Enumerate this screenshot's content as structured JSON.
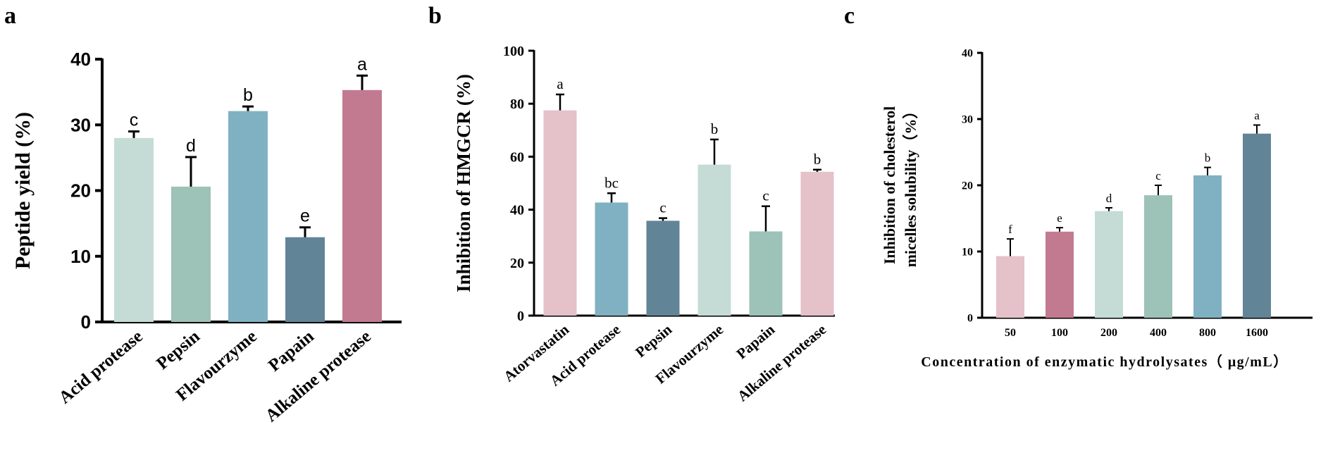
{
  "chart_data": [
    {
      "panel": "a",
      "type": "bar",
      "title": "",
      "xlabel": "",
      "ylabel": "Peptide yield (%)",
      "ylim": [
        0,
        40
      ],
      "yticks": [
        0,
        10,
        20,
        30,
        40
      ],
      "categories": [
        "Acid protease",
        "Pepsin",
        "Flavourzyme",
        "Papain",
        "Alkaline protease"
      ],
      "values": [
        28.0,
        20.6,
        32.1,
        12.9,
        35.3
      ],
      "errors": [
        1.0,
        4.5,
        0.7,
        1.5,
        2.2
      ],
      "significance": [
        "c",
        "d",
        "b",
        "e",
        "a"
      ],
      "colors": [
        "#c4dcd5",
        "#9dc2b8",
        "#80b1c2",
        "#628497",
        "#c27a91"
      ]
    },
    {
      "panel": "b",
      "type": "bar",
      "title": "",
      "xlabel": "",
      "ylabel": "Inhibition of HMGCR (%)",
      "ylim": [
        0,
        100
      ],
      "yticks": [
        0,
        20,
        40,
        60,
        80,
        100
      ],
      "categories": [
        "Atorvastatin",
        "Acid protease",
        "Pepsin",
        "Flavourzyme",
        "Papain",
        "Alkaline protease"
      ],
      "values": [
        77.5,
        42.7,
        35.8,
        57.0,
        31.8,
        54.3
      ],
      "errors": [
        6.0,
        3.5,
        1.0,
        9.5,
        9.5,
        0.8
      ],
      "significance": [
        "a",
        "bc",
        "c",
        "b",
        "c",
        "b"
      ],
      "colors": [
        "#e5c1ca",
        "#80b1c2",
        "#628497",
        "#c4dcd5",
        "#9dc2b8",
        "#e5c1ca"
      ]
    },
    {
      "panel": "c",
      "type": "bar",
      "title": "",
      "xlabel": "Concentration of enzymatic hydrolysates（ μg/mL）",
      "ylabel": "Inhibition of cholesterol micelles solubility（%）",
      "ylabel_lines": [
        "Inhibition of cholesterol",
        "micelles solubility（%）"
      ],
      "ylim": [
        0,
        40
      ],
      "yticks": [
        0,
        10,
        20,
        30,
        40
      ],
      "categories": [
        "50",
        "100",
        "200",
        "400",
        "800",
        "1600"
      ],
      "values": [
        9.3,
        13.0,
        16.1,
        18.5,
        21.5,
        27.8
      ],
      "errors": [
        2.6,
        0.6,
        0.5,
        1.5,
        1.2,
        1.3
      ],
      "significance": [
        "f",
        "e",
        "d",
        "c",
        "b",
        "a"
      ],
      "colors": [
        "#e5c1ca",
        "#c27a91",
        "#c4dcd5",
        "#9dc2b8",
        "#80b1c2",
        "#628497"
      ]
    }
  ],
  "panel_labels": [
    "a",
    "b",
    "c"
  ]
}
